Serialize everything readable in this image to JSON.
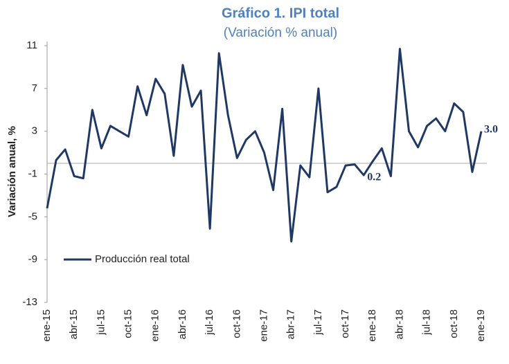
{
  "chart_data": {
    "type": "line",
    "title": "Gráfico 1. IPI total",
    "subtitle": "(Variación % anual)",
    "y_label": "Variación anual, %",
    "categories": [
      "ene-15",
      null,
      null,
      "abr-15",
      null,
      null,
      "jul-15",
      null,
      null,
      "oct-15",
      null,
      null,
      "ene-16",
      null,
      null,
      "abr-16",
      null,
      null,
      "jul-16",
      null,
      null,
      "oct-16",
      null,
      null,
      "ene-17",
      null,
      null,
      "abr-17",
      null,
      null,
      "jul-17",
      null,
      null,
      "oct-17",
      null,
      null,
      "ene-18",
      null,
      null,
      "abr-18",
      null,
      null,
      "jul-18",
      null,
      null,
      "oct-18",
      null,
      null,
      "ene-19"
    ],
    "series": [
      {
        "name": "Producción real total",
        "color": "#1f3864",
        "values": [
          -4.2,
          0.3,
          1.3,
          -1.2,
          -1.4,
          5.0,
          1.4,
          3.5,
          3.0,
          2.5,
          7.2,
          4.5,
          7.9,
          6.5,
          0.7,
          9.2,
          5.3,
          6.8,
          -6.1,
          10.3,
          4.5,
          0.5,
          2.2,
          3.0,
          1.0,
          -2.5,
          5.1,
          -7.3,
          -0.2,
          -1.3,
          7.0,
          -2.7,
          -2.2,
          -0.2,
          -0.1,
          -1.1,
          0.2,
          1.4,
          -1.2,
          10.7,
          3.0,
          1.5,
          3.5,
          4.2,
          3.0,
          5.6,
          4.8,
          -0.8,
          3.0
        ],
        "value_labels": [
          null,
          null,
          null,
          null,
          null,
          null,
          null,
          null,
          null,
          null,
          null,
          null,
          null,
          null,
          null,
          null,
          null,
          null,
          null,
          null,
          null,
          null,
          null,
          null,
          null,
          null,
          null,
          null,
          null,
          null,
          null,
          null,
          null,
          null,
          null,
          null,
          "0.2",
          null,
          null,
          null,
          null,
          null,
          null,
          null,
          null,
          null,
          null,
          null,
          "3.0"
        ]
      }
    ],
    "ylim": [
      -13,
      11
    ],
    "yticks": [
      -13,
      -9,
      -5,
      -1,
      3,
      7,
      11
    ],
    "legend": "lower left"
  }
}
